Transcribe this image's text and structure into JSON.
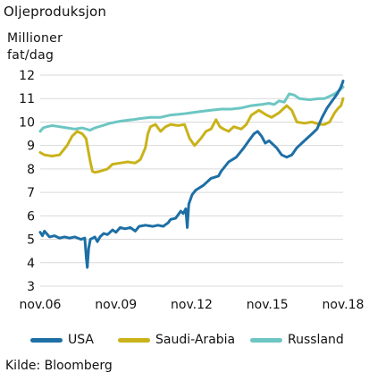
{
  "title": "Oljeproduksjon",
  "unit_line1": "Millioner",
  "unit_line2": "fat/dag",
  "source": "Kilde: Bloomberg",
  "chart_data": {
    "type": "line",
    "ylim": [
      3,
      12
    ],
    "yticks": [
      3,
      4,
      5,
      6,
      7,
      8,
      9,
      10,
      11,
      12
    ],
    "xlim": [
      2006.833,
      2018.833
    ],
    "xticks": [
      {
        "x": 2006.833,
        "label": "nov.06"
      },
      {
        "x": 2009.833,
        "label": "nov.09"
      },
      {
        "x": 2012.833,
        "label": "nov.12"
      },
      {
        "x": 2015.833,
        "label": "nov.15"
      },
      {
        "x": 2018.833,
        "label": "nov.18"
      }
    ],
    "series": [
      {
        "name": "USA",
        "color": "#1d6fa5",
        "points": [
          [
            2006.833,
            5.3
          ],
          [
            2006.92,
            5.15
          ],
          [
            2007.0,
            5.35
          ],
          [
            2007.2,
            5.1
          ],
          [
            2007.4,
            5.15
          ],
          [
            2007.6,
            5.05
          ],
          [
            2007.8,
            5.1
          ],
          [
            2008.0,
            5.05
          ],
          [
            2008.2,
            5.1
          ],
          [
            2008.45,
            5.0
          ],
          [
            2008.6,
            5.05
          ],
          [
            2008.66,
            4.2
          ],
          [
            2008.7,
            3.8
          ],
          [
            2008.75,
            4.6
          ],
          [
            2008.82,
            5.0
          ],
          [
            2009.0,
            5.1
          ],
          [
            2009.1,
            4.9
          ],
          [
            2009.2,
            5.1
          ],
          [
            2009.35,
            5.25
          ],
          [
            2009.5,
            5.2
          ],
          [
            2009.7,
            5.4
          ],
          [
            2009.833,
            5.3
          ],
          [
            2010.0,
            5.5
          ],
          [
            2010.2,
            5.45
          ],
          [
            2010.4,
            5.5
          ],
          [
            2010.6,
            5.35
          ],
          [
            2010.75,
            5.55
          ],
          [
            2011.0,
            5.6
          ],
          [
            2011.3,
            5.55
          ],
          [
            2011.5,
            5.6
          ],
          [
            2011.7,
            5.55
          ],
          [
            2011.9,
            5.7
          ],
          [
            2012.0,
            5.85
          ],
          [
            2012.2,
            5.9
          ],
          [
            2012.4,
            6.2
          ],
          [
            2012.5,
            6.1
          ],
          [
            2012.6,
            6.3
          ],
          [
            2012.66,
            5.5
          ],
          [
            2012.72,
            6.5
          ],
          [
            2012.85,
            6.9
          ],
          [
            2013.0,
            7.1
          ],
          [
            2013.3,
            7.3
          ],
          [
            2013.6,
            7.6
          ],
          [
            2013.9,
            7.7
          ],
          [
            2014.0,
            7.9
          ],
          [
            2014.3,
            8.3
          ],
          [
            2014.6,
            8.5
          ],
          [
            2014.9,
            8.9
          ],
          [
            2015.1,
            9.2
          ],
          [
            2015.3,
            9.5
          ],
          [
            2015.45,
            9.6
          ],
          [
            2015.6,
            9.4
          ],
          [
            2015.75,
            9.1
          ],
          [
            2015.9,
            9.2
          ],
          [
            2016.0,
            9.1
          ],
          [
            2016.2,
            8.9
          ],
          [
            2016.4,
            8.6
          ],
          [
            2016.6,
            8.5
          ],
          [
            2016.8,
            8.6
          ],
          [
            2017.0,
            8.9
          ],
          [
            2017.3,
            9.2
          ],
          [
            2017.6,
            9.5
          ],
          [
            2017.8,
            9.7
          ],
          [
            2018.0,
            10.2
          ],
          [
            2018.2,
            10.6
          ],
          [
            2018.4,
            10.9
          ],
          [
            2018.6,
            11.2
          ],
          [
            2018.75,
            11.5
          ],
          [
            2018.833,
            11.75
          ]
        ]
      },
      {
        "name": "Saudi-Arabia",
        "color": "#c9b21a",
        "points": [
          [
            2006.833,
            8.7
          ],
          [
            2007.0,
            8.6
          ],
          [
            2007.3,
            8.55
          ],
          [
            2007.6,
            8.6
          ],
          [
            2007.9,
            9.0
          ],
          [
            2008.1,
            9.4
          ],
          [
            2008.3,
            9.6
          ],
          [
            2008.5,
            9.5
          ],
          [
            2008.65,
            9.3
          ],
          [
            2008.8,
            8.4
          ],
          [
            2008.9,
            7.9
          ],
          [
            2009.0,
            7.85
          ],
          [
            2009.2,
            7.9
          ],
          [
            2009.5,
            8.0
          ],
          [
            2009.7,
            8.2
          ],
          [
            2010.0,
            8.25
          ],
          [
            2010.3,
            8.3
          ],
          [
            2010.6,
            8.25
          ],
          [
            2010.8,
            8.4
          ],
          [
            2011.0,
            8.9
          ],
          [
            2011.1,
            9.5
          ],
          [
            2011.2,
            9.8
          ],
          [
            2011.4,
            9.9
          ],
          [
            2011.6,
            9.6
          ],
          [
            2011.8,
            9.8
          ],
          [
            2012.0,
            9.9
          ],
          [
            2012.3,
            9.85
          ],
          [
            2012.55,
            9.9
          ],
          [
            2012.75,
            9.3
          ],
          [
            2012.95,
            9.0
          ],
          [
            2013.2,
            9.3
          ],
          [
            2013.4,
            9.6
          ],
          [
            2013.6,
            9.7
          ],
          [
            2013.8,
            10.1
          ],
          [
            2013.95,
            9.8
          ],
          [
            2014.1,
            9.7
          ],
          [
            2014.3,
            9.6
          ],
          [
            2014.5,
            9.8
          ],
          [
            2014.8,
            9.7
          ],
          [
            2015.0,
            9.9
          ],
          [
            2015.2,
            10.3
          ],
          [
            2015.5,
            10.5
          ],
          [
            2015.8,
            10.3
          ],
          [
            2016.0,
            10.2
          ],
          [
            2016.3,
            10.4
          ],
          [
            2016.6,
            10.7
          ],
          [
            2016.8,
            10.5
          ],
          [
            2017.0,
            10.0
          ],
          [
            2017.3,
            9.95
          ],
          [
            2017.6,
            10.0
          ],
          [
            2017.9,
            9.9
          ],
          [
            2018.1,
            9.9
          ],
          [
            2018.3,
            10.0
          ],
          [
            2018.5,
            10.4
          ],
          [
            2018.65,
            10.6
          ],
          [
            2018.75,
            10.7
          ],
          [
            2018.833,
            11.0
          ]
        ]
      },
      {
        "name": "Russland",
        "color": "#6cc6c3",
        "points": [
          [
            2006.833,
            9.6
          ],
          [
            2006.95,
            9.75
          ],
          [
            2007.1,
            9.8
          ],
          [
            2007.3,
            9.85
          ],
          [
            2007.6,
            9.8
          ],
          [
            2007.9,
            9.75
          ],
          [
            2008.2,
            9.7
          ],
          [
            2008.5,
            9.75
          ],
          [
            2008.8,
            9.65
          ],
          [
            2009.0,
            9.75
          ],
          [
            2009.3,
            9.85
          ],
          [
            2009.6,
            9.95
          ],
          [
            2009.833,
            10.0
          ],
          [
            2010.1,
            10.05
          ],
          [
            2010.5,
            10.1
          ],
          [
            2010.8,
            10.15
          ],
          [
            2011.2,
            10.2
          ],
          [
            2011.6,
            10.2
          ],
          [
            2012.0,
            10.3
          ],
          [
            2012.5,
            10.35
          ],
          [
            2012.833,
            10.4
          ],
          [
            2013.2,
            10.45
          ],
          [
            2013.6,
            10.5
          ],
          [
            2014.0,
            10.55
          ],
          [
            2014.4,
            10.55
          ],
          [
            2014.8,
            10.6
          ],
          [
            2015.2,
            10.7
          ],
          [
            2015.6,
            10.75
          ],
          [
            2015.9,
            10.8
          ],
          [
            2016.1,
            10.75
          ],
          [
            2016.3,
            10.9
          ],
          [
            2016.5,
            10.85
          ],
          [
            2016.7,
            11.2
          ],
          [
            2016.9,
            11.15
          ],
          [
            2017.1,
            11.0
          ],
          [
            2017.5,
            10.95
          ],
          [
            2017.9,
            11.0
          ],
          [
            2018.1,
            11.0
          ],
          [
            2018.3,
            11.1
          ],
          [
            2018.5,
            11.2
          ],
          [
            2018.7,
            11.35
          ],
          [
            2018.833,
            11.5
          ]
        ]
      }
    ]
  }
}
